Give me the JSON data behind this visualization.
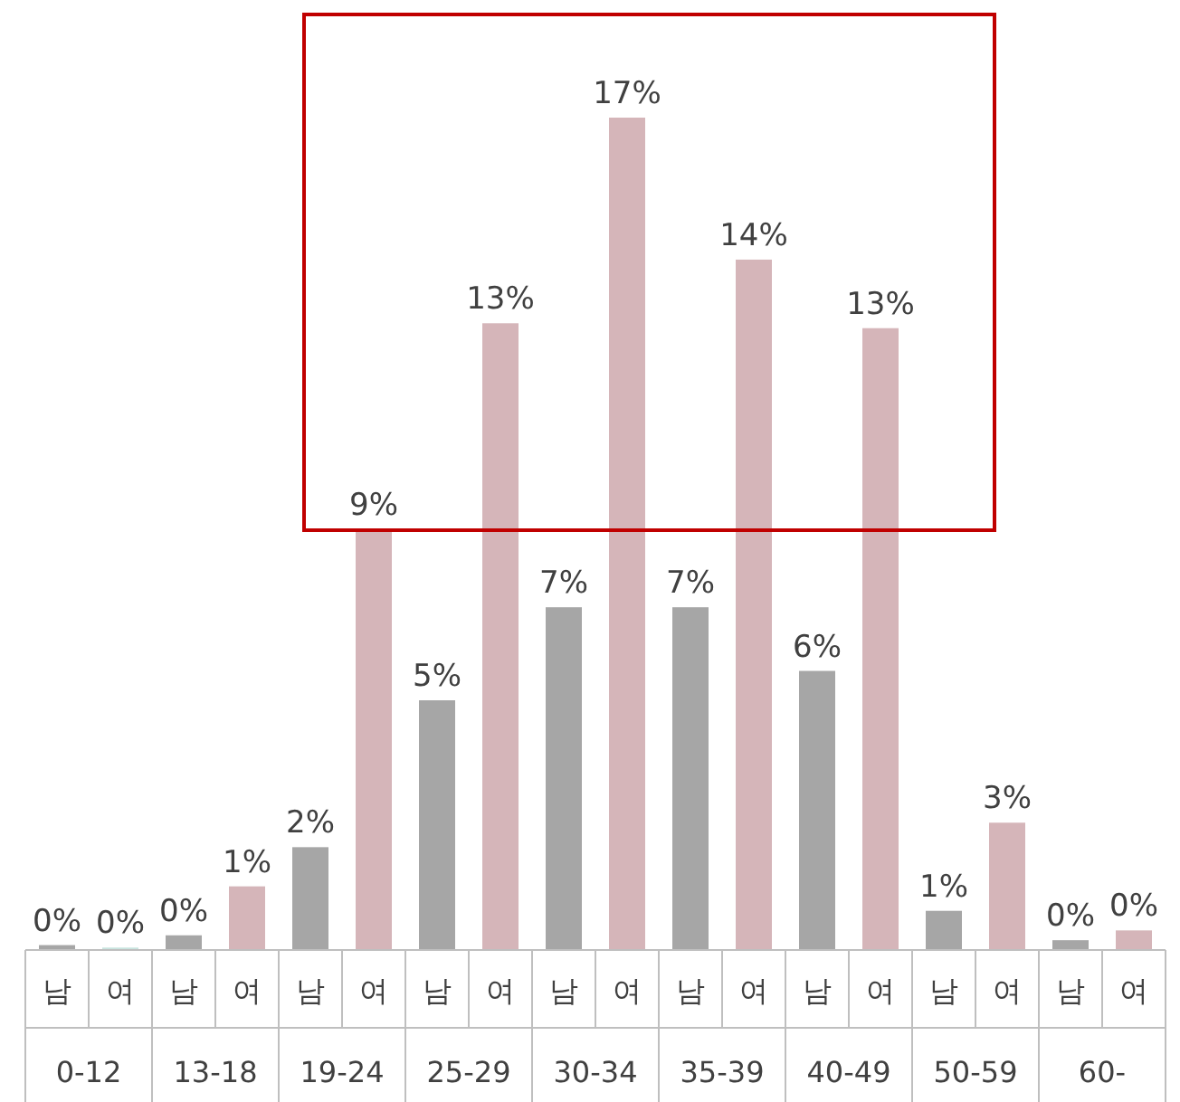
{
  "chart_data": {
    "type": "bar",
    "categories": [
      "남",
      "여",
      "남",
      "여",
      "남",
      "여",
      "남",
      "여",
      "남",
      "여",
      "남",
      "여",
      "남",
      "여",
      "남",
      "여",
      "남",
      "여"
    ],
    "values": [
      0.1,
      0.05,
      0.3,
      1.3,
      2.1,
      8.6,
      5.1,
      12.8,
      7.0,
      17.0,
      7.0,
      14.1,
      5.7,
      12.7,
      0.8,
      2.6,
      0.2,
      0.4
    ],
    "value_labels": [
      "0%",
      "0%",
      "0%",
      "1%",
      "2%",
      "9%",
      "5%",
      "13%",
      "7%",
      "17%",
      "7%",
      "14%",
      "6%",
      "13%",
      "1%",
      "3%",
      "0%",
      "0%"
    ],
    "colors": [
      "#a6a6a6",
      "#c9e4df",
      "#a6a6a6",
      "#d5b5b9",
      "#a6a6a6",
      "#d5b5b9",
      "#a6a6a6",
      "#d5b5b9",
      "#a6a6a6",
      "#d5b5b9",
      "#a6a6a6",
      "#d5b5b9",
      "#a6a6a6",
      "#d5b5b9",
      "#a6a6a6",
      "#d5b5b9",
      "#a6a6a6",
      "#d5b5b9"
    ],
    "annotations": [
      "0-12",
      "13-18",
      "19-24",
      "25-29",
      "30-34",
      "35-39",
      "40-49",
      "50-59",
      "60-"
    ]
  }
}
